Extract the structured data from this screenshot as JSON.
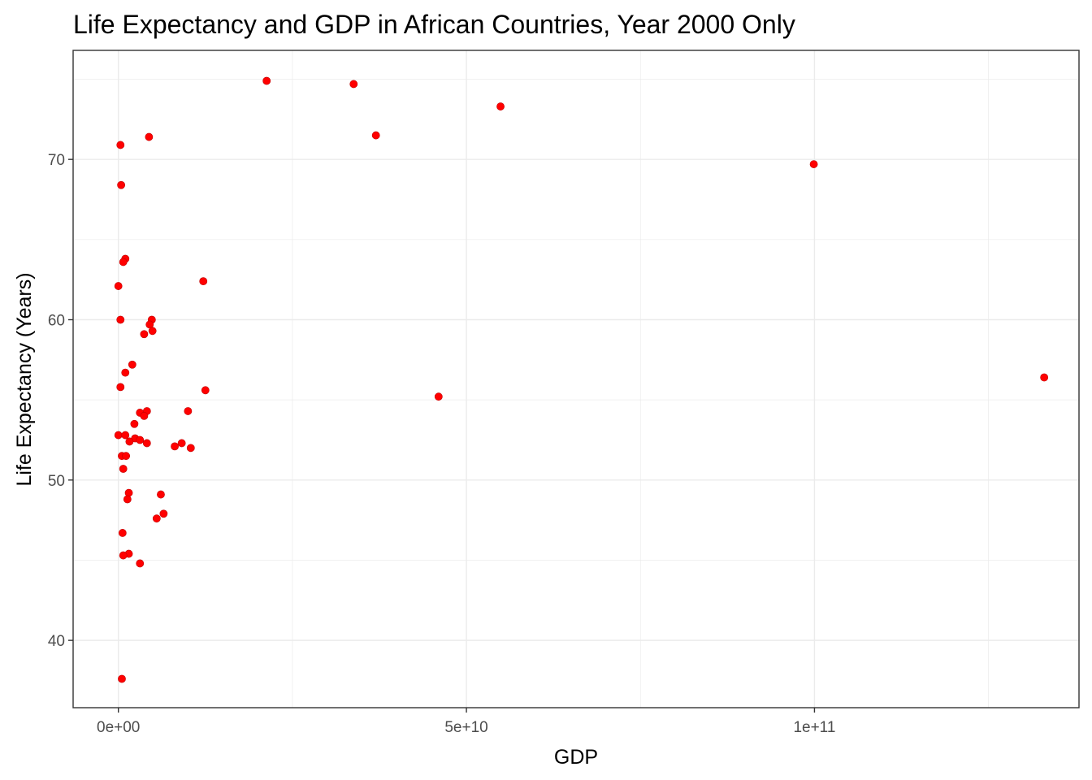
{
  "chart_data": {
    "type": "scatter",
    "title": "Life Expectancy and GDP in African Countries, Year 2000 Only",
    "xlabel": "GDP",
    "ylabel": "Life Expectancy (Years)",
    "xlim": [
      -6500000000.0,
      138000000000.0
    ],
    "ylim": [
      35.8,
      76.8
    ],
    "x_ticks": [
      {
        "value": 0,
        "label": "0e+00"
      },
      {
        "value": 50000000000.0,
        "label": "5e+10"
      },
      {
        "value": 100000000000.0,
        "label": "1e+11"
      }
    ],
    "x_minor": [
      -25000000000.0,
      25000000000.0,
      75000000000.0,
      125000000000.0
    ],
    "y_ticks": [
      {
        "value": 40,
        "label": "40"
      },
      {
        "value": 50,
        "label": "50"
      },
      {
        "value": 60,
        "label": "60"
      },
      {
        "value": 70,
        "label": "70"
      }
    ],
    "y_minor": [
      45,
      55,
      65,
      75
    ],
    "grid": true,
    "point_color": "#ff0000",
    "points": [
      {
        "x": 21300000000.0,
        "y": 74.9
      },
      {
        "x": 33800000000.0,
        "y": 74.7
      },
      {
        "x": 54900000000.0,
        "y": 73.3
      },
      {
        "x": 37000000000.0,
        "y": 71.5
      },
      {
        "x": 4400000000.0,
        "y": 71.4
      },
      {
        "x": 300000000.0,
        "y": 70.9
      },
      {
        "x": 99900000000.0,
        "y": 69.7
      },
      {
        "x": 400000000.0,
        "y": 68.4
      },
      {
        "x": 1000000000.0,
        "y": 63.8
      },
      {
        "x": 700000000.0,
        "y": 63.6
      },
      {
        "x": 12200000000.0,
        "y": 62.4
      },
      {
        "x": 0.0,
        "y": 62.1
      },
      {
        "x": 300000000.0,
        "y": 60.0
      },
      {
        "x": 4800000000.0,
        "y": 60.0
      },
      {
        "x": 4500000000.0,
        "y": 59.7
      },
      {
        "x": 4900000000.0,
        "y": 59.3
      },
      {
        "x": 3700000000.0,
        "y": 59.1
      },
      {
        "x": 2000000000.0,
        "y": 57.2
      },
      {
        "x": 1000000000.0,
        "y": 56.7
      },
      {
        "x": 133000000000.0,
        "y": 56.4
      },
      {
        "x": 300000000.0,
        "y": 55.8
      },
      {
        "x": 12500000000.0,
        "y": 55.6
      },
      {
        "x": 46000000000.0,
        "y": 55.2
      },
      {
        "x": 4100000000.0,
        "y": 54.3
      },
      {
        "x": 10000000000.0,
        "y": 54.3
      },
      {
        "x": 3100000000.0,
        "y": 54.2
      },
      {
        "x": 3700000000.0,
        "y": 54.0
      },
      {
        "x": 2300000000.0,
        "y": 53.5
      },
      {
        "x": 0.0,
        "y": 52.8
      },
      {
        "x": 1000000000.0,
        "y": 52.8
      },
      {
        "x": 2400000000.0,
        "y": 52.6
      },
      {
        "x": 3100000000.0,
        "y": 52.5
      },
      {
        "x": 1600000000.0,
        "y": 52.4
      },
      {
        "x": 4100000000.0,
        "y": 52.3
      },
      {
        "x": 9100000000.0,
        "y": 52.3
      },
      {
        "x": 8100000000.0,
        "y": 52.1
      },
      {
        "x": 10400000000.0,
        "y": 52.0
      },
      {
        "x": 500000000.0,
        "y": 51.5
      },
      {
        "x": 1100000000.0,
        "y": 51.5
      },
      {
        "x": 700000000.0,
        "y": 50.7
      },
      {
        "x": 1500000000.0,
        "y": 49.2
      },
      {
        "x": 6100000000.0,
        "y": 49.1
      },
      {
        "x": 1300000000.0,
        "y": 48.8
      },
      {
        "x": 6500000000.0,
        "y": 47.9
      },
      {
        "x": 5500000000.0,
        "y": 47.6
      },
      {
        "x": 600000000.0,
        "y": 46.7
      },
      {
        "x": 1500000000.0,
        "y": 45.4
      },
      {
        "x": 700000000.0,
        "y": 45.3
      },
      {
        "x": 3100000000.0,
        "y": 44.8
      },
      {
        "x": 500000000.0,
        "y": 37.6
      }
    ]
  }
}
